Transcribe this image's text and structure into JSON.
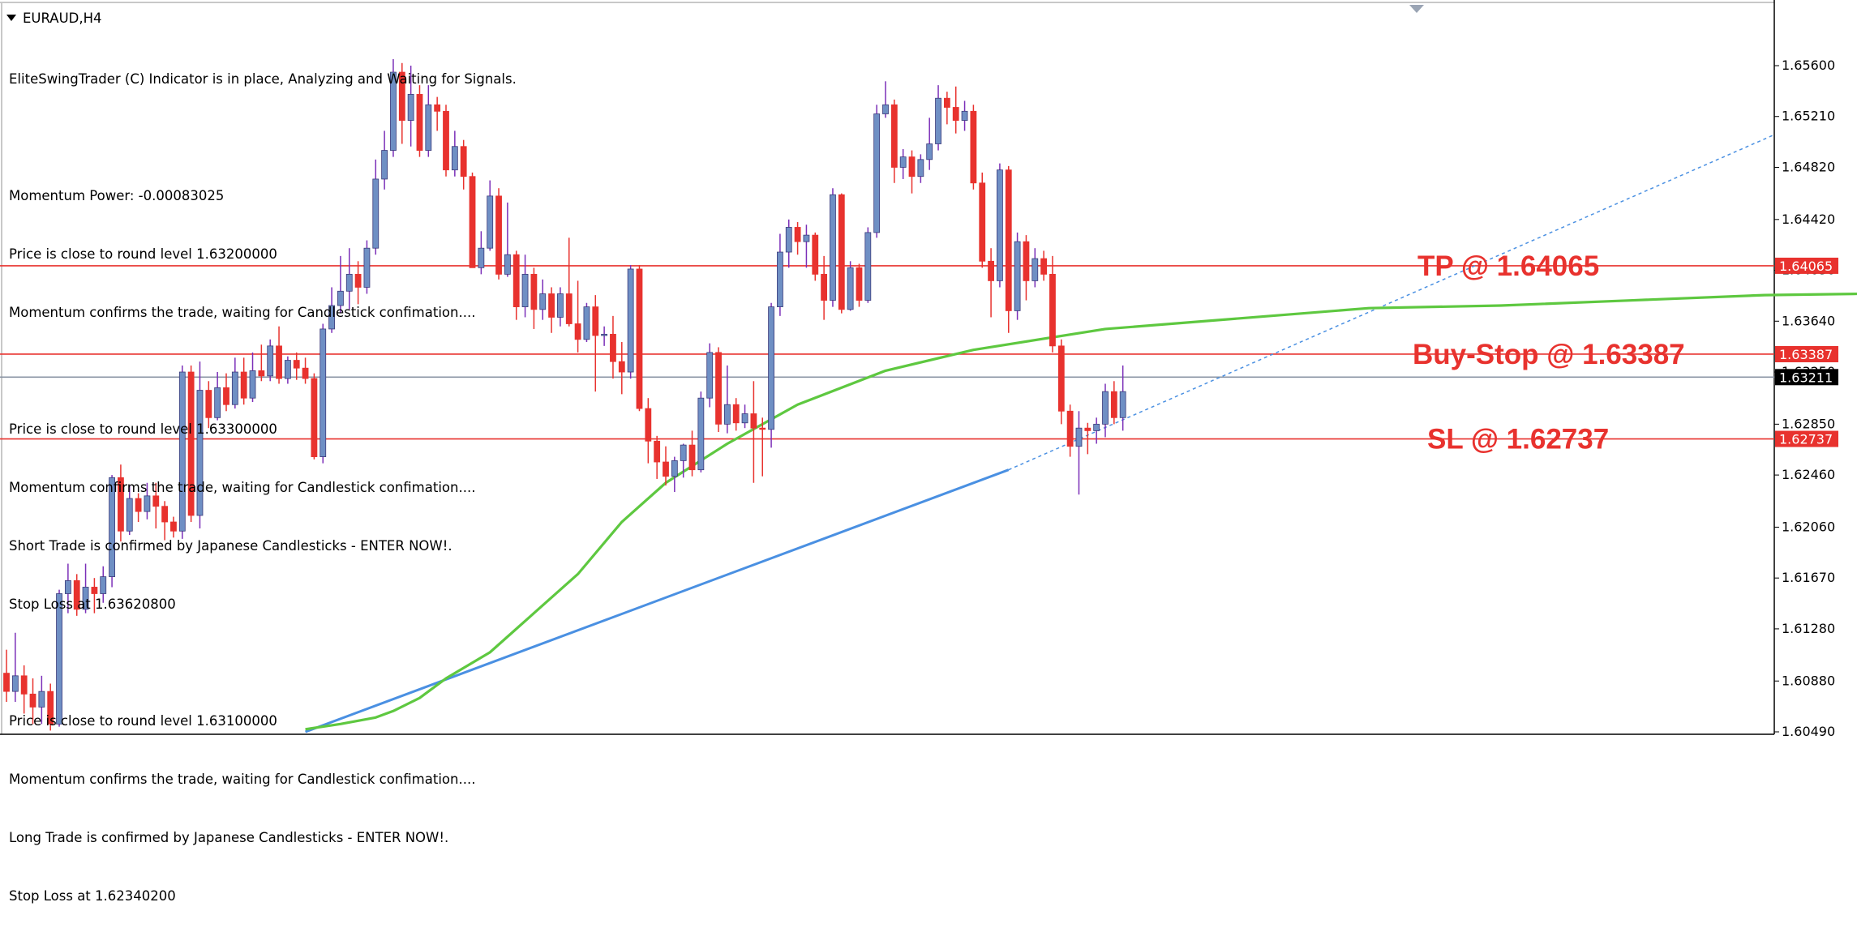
{
  "symbol": "EURAUD,H4",
  "info_lines": [
    "EliteSwingTrader (C) Indicator is in place, Analyzing and Waiting for Signals.",
    "",
    "Momentum Power: -0.00083025",
    "Price is close to round level 1.63200000",
    "Momentum confirms the trade, waiting for Candlestick confimation....",
    "",
    "Price is close to round level 1.63300000",
    "Momentum confirms the trade, waiting for Candlestick confimation....",
    "Short Trade is confirmed by Japanese Candlesticks - ENTER NOW!.",
    "Stop Loss at 1.63620800",
    "",
    "Price is close to round level 1.63100000",
    "Momentum confirms the trade, waiting for Candlestick confimation....",
    "Long Trade is confirmed by Japanese Candlesticks - ENTER NOW!.",
    "Stop Loss at 1.62340200"
  ],
  "colors": {
    "bull": "#6f8fc4",
    "bear": "#e8322e",
    "wick": "#7b2fb8",
    "ma": "#5ec840",
    "trend": "#4a90e2",
    "level": "#e8322e",
    "current": "#8a94a4",
    "annotation": "#e8322e"
  },
  "chart_data": {
    "type": "candlestick",
    "ylim": [
      1.6049,
      1.6583
    ],
    "y_ticks": [
      "1.65600",
      "1.65210",
      "1.64820",
      "1.64420",
      "1.64030",
      "1.63640",
      "1.63250",
      "1.62850",
      "1.62460",
      "1.62060",
      "1.61670",
      "1.61280",
      "1.60880",
      "1.60490"
    ],
    "levels": [
      {
        "name": "tp",
        "price": 1.64065,
        "label": "1.64065",
        "annotation": "TP @ 1.64065",
        "style": "red"
      },
      {
        "name": "buy-stop",
        "price": 1.63387,
        "label": "1.63387",
        "annotation": "Buy-Stop @ 1.63387",
        "style": "red"
      },
      {
        "name": "current",
        "price": 1.63211,
        "label": "1.63211",
        "annotation": "",
        "style": "current"
      },
      {
        "name": "sl",
        "price": 1.62737,
        "label": "1.62737",
        "annotation": "SL @ 1.62737",
        "style": "red"
      }
    ],
    "candles": [
      [
        1.6094,
        1.608,
        1.6112,
        1.6072
      ],
      [
        1.608,
        1.6092,
        1.6125,
        1.6072
      ],
      [
        1.6092,
        1.6078,
        1.61,
        1.6063
      ],
      [
        1.6078,
        1.6068,
        1.609,
        1.6055
      ],
      [
        1.6068,
        1.608,
        1.6092,
        1.6055
      ],
      [
        1.608,
        1.6055,
        1.6086,
        1.605
      ],
      [
        1.6055,
        1.6155,
        1.6158,
        1.6053
      ],
      [
        1.6155,
        1.6165,
        1.6178,
        1.614
      ],
      [
        1.6165,
        1.6143,
        1.617,
        1.6138
      ],
      [
        1.6143,
        1.616,
        1.6178,
        1.614
      ],
      [
        1.616,
        1.6155,
        1.6167,
        1.614
      ],
      [
        1.6155,
        1.6168,
        1.6176,
        1.6148
      ],
      [
        1.6168,
        1.6244,
        1.6246,
        1.616
      ],
      [
        1.6244,
        1.6203,
        1.6254,
        1.6195
      ],
      [
        1.6203,
        1.6228,
        1.6238,
        1.62
      ],
      [
        1.6228,
        1.6218,
        1.6232,
        1.621
      ],
      [
        1.6218,
        1.623,
        1.624,
        1.6212
      ],
      [
        1.623,
        1.6222,
        1.624,
        1.6205
      ],
      [
        1.6222,
        1.621,
        1.6226,
        1.6196
      ],
      [
        1.621,
        1.6203,
        1.6214,
        1.6198
      ],
      [
        1.6203,
        1.6325,
        1.633,
        1.6197
      ],
      [
        1.6325,
        1.6215,
        1.633,
        1.621
      ],
      [
        1.6215,
        1.6311,
        1.6333,
        1.6205
      ],
      [
        1.6311,
        1.629,
        1.6318,
        1.6282
      ],
      [
        1.629,
        1.6313,
        1.6325,
        1.6288
      ],
      [
        1.6313,
        1.63,
        1.6324,
        1.6295
      ],
      [
        1.63,
        1.6325,
        1.6336,
        1.6297
      ],
      [
        1.6325,
        1.6305,
        1.6336,
        1.63
      ],
      [
        1.6305,
        1.6326,
        1.634,
        1.6302
      ],
      [
        1.6326,
        1.6322,
        1.6346,
        1.6318
      ],
      [
        1.6322,
        1.6345,
        1.635,
        1.6318
      ],
      [
        1.6345,
        1.632,
        1.636,
        1.6316
      ],
      [
        1.632,
        1.6334,
        1.6337,
        1.6316
      ],
      [
        1.6334,
        1.6328,
        1.634,
        1.6319
      ],
      [
        1.6328,
        1.632,
        1.6336,
        1.6316
      ],
      [
        1.632,
        1.626,
        1.6324,
        1.6258
      ],
      [
        1.626,
        1.6358,
        1.6362,
        1.6255
      ],
      [
        1.6358,
        1.6376,
        1.639,
        1.6355
      ],
      [
        1.6376,
        1.6387,
        1.6414,
        1.637
      ],
      [
        1.6387,
        1.64,
        1.642,
        1.6373
      ],
      [
        1.64,
        1.639,
        1.641,
        1.6377
      ],
      [
        1.639,
        1.642,
        1.6426,
        1.6385
      ],
      [
        1.642,
        1.6473,
        1.6488,
        1.6415
      ],
      [
        1.6473,
        1.6495,
        1.651,
        1.6465
      ],
      [
        1.6495,
        1.6555,
        1.6565,
        1.649
      ],
      [
        1.6555,
        1.6518,
        1.6562,
        1.65
      ],
      [
        1.6518,
        1.6538,
        1.656,
        1.6498
      ],
      [
        1.6538,
        1.6495,
        1.6545,
        1.649
      ],
      [
        1.6495,
        1.653,
        1.6545,
        1.649
      ],
      [
        1.653,
        1.6525,
        1.6536,
        1.651
      ],
      [
        1.6525,
        1.648,
        1.653,
        1.6475
      ],
      [
        1.648,
        1.6498,
        1.651,
        1.6475
      ],
      [
        1.6498,
        1.6475,
        1.6503,
        1.6465
      ],
      [
        1.6475,
        1.6405,
        1.6478,
        1.6405
      ],
      [
        1.6405,
        1.642,
        1.6433,
        1.64
      ],
      [
        1.642,
        1.646,
        1.6472,
        1.6418
      ],
      [
        1.646,
        1.64,
        1.6466,
        1.6396
      ],
      [
        1.64,
        1.6415,
        1.6455,
        1.6398
      ],
      [
        1.6415,
        1.6375,
        1.6418,
        1.6365
      ],
      [
        1.6375,
        1.64,
        1.6415,
        1.6367
      ],
      [
        1.64,
        1.6373,
        1.6405,
        1.6358
      ],
      [
        1.6373,
        1.6385,
        1.6396,
        1.6365
      ],
      [
        1.6385,
        1.6367,
        1.639,
        1.6355
      ],
      [
        1.6367,
        1.6385,
        1.639,
        1.636
      ],
      [
        1.6385,
        1.6362,
        1.6428,
        1.636
      ],
      [
        1.6362,
        1.635,
        1.6395,
        1.634
      ],
      [
        1.635,
        1.6375,
        1.6378,
        1.6348
      ],
      [
        1.6375,
        1.6353,
        1.6384,
        1.631
      ],
      [
        1.6353,
        1.6354,
        1.636,
        1.6345
      ],
      [
        1.6354,
        1.6333,
        1.6368,
        1.632
      ],
      [
        1.6333,
        1.6325,
        1.6348,
        1.6308
      ],
      [
        1.6325,
        1.6404,
        1.6407,
        1.632
      ],
      [
        1.6404,
        1.6297,
        1.6407,
        1.6295
      ],
      [
        1.6297,
        1.6272,
        1.6305,
        1.6255
      ],
      [
        1.6272,
        1.6256,
        1.6276,
        1.6243
      ],
      [
        1.6256,
        1.6245,
        1.6268,
        1.6238
      ],
      [
        1.6245,
        1.6257,
        1.626,
        1.6233
      ],
      [
        1.6257,
        1.6269,
        1.627,
        1.6244
      ],
      [
        1.6269,
        1.625,
        1.628,
        1.6245
      ],
      [
        1.625,
        1.6305,
        1.631,
        1.6248
      ],
      [
        1.6305,
        1.634,
        1.6347,
        1.6298
      ],
      [
        1.634,
        1.6285,
        1.6344,
        1.6279
      ],
      [
        1.6285,
        1.63,
        1.633,
        1.6278
      ],
      [
        1.63,
        1.6286,
        1.6305,
        1.628
      ],
      [
        1.6286,
        1.6293,
        1.63,
        1.6282
      ],
      [
        1.6293,
        1.6282,
        1.6318,
        1.624
      ],
      [
        1.6282,
        1.6281,
        1.629,
        1.6245
      ],
      [
        1.6281,
        1.6375,
        1.6378,
        1.6267
      ],
      [
        1.6375,
        1.6417,
        1.6431,
        1.6368
      ],
      [
        1.6417,
        1.6436,
        1.6442,
        1.6405
      ],
      [
        1.6436,
        1.6425,
        1.644,
        1.6415
      ],
      [
        1.6425,
        1.643,
        1.6438,
        1.6405
      ],
      [
        1.643,
        1.64,
        1.6432,
        1.6395
      ],
      [
        1.64,
        1.638,
        1.6414,
        1.6365
      ],
      [
        1.638,
        1.6461,
        1.6466,
        1.6375
      ],
      [
        1.6461,
        1.6373,
        1.6462,
        1.637
      ],
      [
        1.6373,
        1.6405,
        1.641,
        1.6372
      ],
      [
        1.6405,
        1.638,
        1.6408,
        1.6375
      ],
      [
        1.638,
        1.6432,
        1.6436,
        1.6378
      ],
      [
        1.6432,
        1.6523,
        1.653,
        1.6428
      ],
      [
        1.6523,
        1.653,
        1.6548,
        1.652
      ],
      [
        1.653,
        1.6482,
        1.6534,
        1.647
      ],
      [
        1.6482,
        1.649,
        1.6496,
        1.6473
      ],
      [
        1.649,
        1.6475,
        1.6495,
        1.6462
      ],
      [
        1.6475,
        1.6488,
        1.6492,
        1.647
      ],
      [
        1.6488,
        1.65,
        1.652,
        1.648
      ],
      [
        1.65,
        1.6535,
        1.6545,
        1.6495
      ],
      [
        1.6535,
        1.6528,
        1.654,
        1.6515
      ],
      [
        1.6528,
        1.6518,
        1.6544,
        1.6508
      ],
      [
        1.6518,
        1.6525,
        1.6533,
        1.651
      ],
      [
        1.6525,
        1.647,
        1.653,
        1.6465
      ],
      [
        1.647,
        1.641,
        1.6478,
        1.6405
      ],
      [
        1.641,
        1.6395,
        1.642,
        1.6367
      ],
      [
        1.6395,
        1.648,
        1.6485,
        1.639
      ],
      [
        1.648,
        1.6372,
        1.6483,
        1.6355
      ],
      [
        1.6372,
        1.6425,
        1.6432,
        1.6365
      ],
      [
        1.6425,
        1.6395,
        1.643,
        1.638
      ],
      [
        1.6395,
        1.6412,
        1.642,
        1.639
      ],
      [
        1.6412,
        1.64,
        1.6418,
        1.6395
      ],
      [
        1.64,
        1.6345,
        1.6414,
        1.634
      ],
      [
        1.6345,
        1.6295,
        1.635,
        1.6285
      ],
      [
        1.6295,
        1.6268,
        1.63,
        1.626
      ],
      [
        1.6268,
        1.6282,
        1.6295,
        1.6231
      ],
      [
        1.6282,
        1.628,
        1.6286,
        1.6262
      ],
      [
        1.628,
        1.6285,
        1.629,
        1.627
      ],
      [
        1.6285,
        1.631,
        1.6316,
        1.6275
      ],
      [
        1.631,
        1.629,
        1.6318,
        1.6285
      ],
      [
        1.629,
        1.631,
        1.633,
        1.628
      ]
    ],
    "ma": [
      [
        1.6051,
        34
      ],
      [
        1.6055,
        38
      ],
      [
        1.606,
        42
      ],
      [
        1.6065,
        44
      ],
      [
        1.6075,
        47
      ],
      [
        1.609,
        50
      ],
      [
        1.611,
        55
      ],
      [
        1.614,
        60
      ],
      [
        1.617,
        65
      ],
      [
        1.621,
        70
      ],
      [
        1.624,
        75
      ],
      [
        1.627,
        82
      ],
      [
        1.63,
        90
      ],
      [
        1.6326,
        100
      ],
      [
        1.6342,
        110
      ],
      [
        1.6358,
        125
      ],
      [
        1.6366,
        140
      ],
      [
        1.6374,
        155
      ],
      [
        1.6376,
        170
      ],
      [
        1.638,
        185
      ],
      [
        1.6384,
        200
      ],
      [
        1.6386,
        222
      ],
      [
        1.6387,
        245
      ],
      [
        1.6384,
        268
      ],
      [
        1.6383,
        290
      ],
      [
        1.6384,
        305
      ],
      [
        1.6381,
        318
      ]
    ],
    "trend_solid": [
      [
        1.6049,
        34
      ],
      [
        1.625,
        114
      ]
    ],
    "trend_dotted": [
      [
        1.625,
        114
      ],
      [
        1.6507,
        218
      ]
    ]
  }
}
